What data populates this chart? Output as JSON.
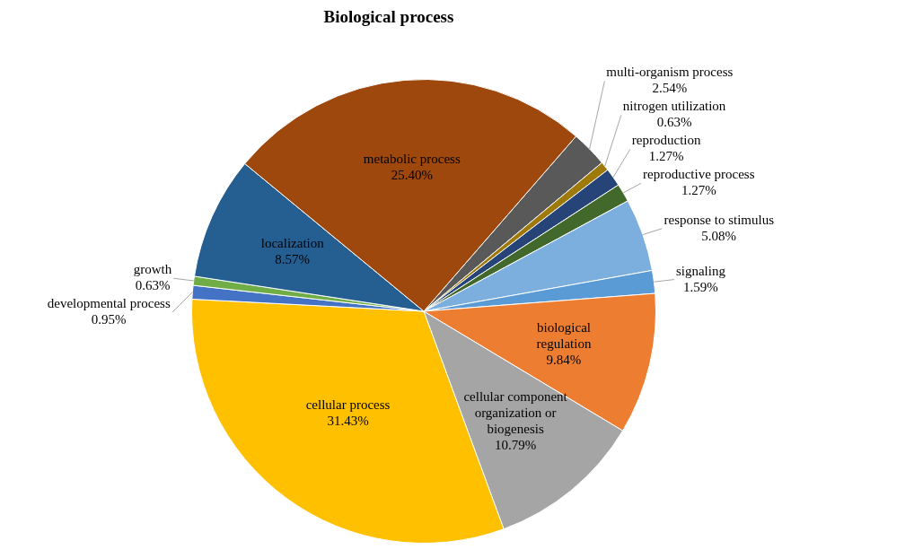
{
  "chart_data": {
    "type": "pie",
    "title": "Biological process",
    "categories": [
      "multi-organism process",
      "nitrogen utilization",
      "reproduction",
      "reproductive process",
      "response to stimulus",
      "signaling",
      "biological regulation",
      "cellular component organization or biogenesis",
      "cellular process",
      "developmental process",
      "growth",
      "localization",
      "metabolic process"
    ],
    "values": [
      2.54,
      0.63,
      1.27,
      1.27,
      5.08,
      1.59,
      9.84,
      10.79,
      31.43,
      0.95,
      0.63,
      8.57,
      25.4
    ],
    "value_labels": [
      "2.54%",
      "0.63%",
      "1.27%",
      "1.27%",
      "5.08%",
      "1.59%",
      "9.84%",
      "10.79%",
      "31.43%",
      "0.95%",
      "0.63%",
      "8.57%",
      "25.40%"
    ],
    "colors": [
      "#595959",
      "#9e7a0a",
      "#264478",
      "#43682b",
      "#7cafdd",
      "#5b9bd5",
      "#ed7d31",
      "#a5a5a5",
      "#ffc000",
      "#4472c4",
      "#70ad47",
      "#255e91",
      "#9e480e"
    ]
  }
}
